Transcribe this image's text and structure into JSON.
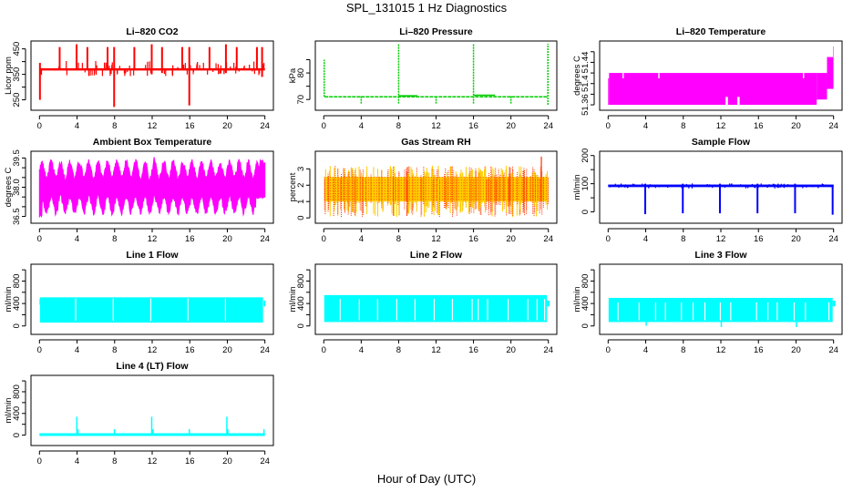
{
  "figure": {
    "title": "SPL_131015  1 Hz Diagnostics",
    "xlabel": "Hour of Day (UTC)"
  },
  "chart_data": [
    {
      "type": "line",
      "id": "co2",
      "title": "Li–820 CO2",
      "ylabel": "Licor ppm",
      "color": "#ff0000",
      "xlim": [
        0,
        24
      ],
      "x_ticks": [
        0,
        4,
        8,
        12,
        16,
        20,
        24
      ],
      "ylim": [
        220,
        470
      ],
      "y_ticks": [
        250,
        300,
        350,
        400,
        450
      ],
      "y_tick_labels": [
        "250",
        "",
        "350",
        "",
        "450"
      ],
      "baseline": 370,
      "band": [
        365,
        374
      ],
      "spikes": [
        {
          "x": 0.05,
          "low": 250,
          "high": 395
        },
        {
          "x": 2.15,
          "low": 368,
          "high": 457
        },
        {
          "x": 3.95,
          "low": 366,
          "high": 468
        },
        {
          "x": 5.1,
          "low": 366,
          "high": 457
        },
        {
          "x": 7.25,
          "low": 366,
          "high": 457
        },
        {
          "x": 7.95,
          "low": 222,
          "high": 457
        },
        {
          "x": 10.1,
          "low": 366,
          "high": 457
        },
        {
          "x": 11.95,
          "low": 350,
          "high": 468
        },
        {
          "x": 13.05,
          "low": 355,
          "high": 457
        },
        {
          "x": 15.2,
          "low": 366,
          "high": 457
        },
        {
          "x": 15.95,
          "low": 228,
          "high": 457
        },
        {
          "x": 18.1,
          "low": 366,
          "high": 457
        },
        {
          "x": 19.85,
          "low": 355,
          "high": 468
        },
        {
          "x": 21.0,
          "low": 366,
          "high": 457
        },
        {
          "x": 23.15,
          "low": 366,
          "high": 457
        },
        {
          "x": 23.7,
          "low": 340,
          "high": 457
        }
      ]
    },
    {
      "type": "line",
      "id": "pressure",
      "title": "Li–820 Pressure",
      "ylabel": "kPa",
      "color": "#00cc00",
      "xlim": [
        0,
        24
      ],
      "x_ticks": [
        0,
        4,
        8,
        12,
        16,
        20,
        24
      ],
      "ylim": [
        67,
        91
      ],
      "y_ticks": [
        70,
        75,
        80,
        85
      ],
      "y_tick_labels": [
        "70",
        "",
        "80",
        ""
      ],
      "baseline": 71,
      "spikes": [
        {
          "x": 0.05,
          "low": 71,
          "high": 85
        },
        {
          "x": 4.0,
          "low": 68.5,
          "high": 71.5
        },
        {
          "x": 8.0,
          "low": 68.5,
          "high": 91
        },
        {
          "x": 12.0,
          "low": 68.5,
          "high": 71.5
        },
        {
          "x": 16.0,
          "low": 68.5,
          "high": 91
        },
        {
          "x": 20.0,
          "low": 68.5,
          "high": 71.5
        },
        {
          "x": 23.95,
          "low": 68,
          "high": 91
        }
      ]
    },
    {
      "type": "area",
      "id": "licor_temp",
      "title": "Li–820 Temperature",
      "ylabel": "degrees C",
      "color": "#ff00ff",
      "xlim": [
        0,
        24
      ],
      "x_ticks": [
        0,
        4,
        8,
        12,
        16,
        20,
        24
      ],
      "ylim": [
        51.355,
        51.475
      ],
      "y_ticks": [
        51.36,
        51.38,
        51.4,
        51.42,
        51.44,
        51.46
      ],
      "y_tick_labels": [
        "51.36",
        "",
        "51.4",
        "",
        "51.44",
        ""
      ],
      "segments": [
        {
          "x0": 0.0,
          "x1": 0.1,
          "low": 51.36,
          "high": 51.41
        },
        {
          "x0": 0.1,
          "x1": 22.2,
          "low": 51.36,
          "high": 51.42
        },
        {
          "x0": 22.2,
          "x1": 23.3,
          "low": 51.37,
          "high": 51.42
        },
        {
          "x0": 23.3,
          "x1": 23.95,
          "low": 51.39,
          "high": 51.45
        },
        {
          "x0": 23.95,
          "x1": 24.0,
          "low": 51.39,
          "high": 51.47
        }
      ],
      "gaps": [
        {
          "x": 1.6,
          "low": 51.41,
          "high": 51.42
        },
        {
          "x": 5.4,
          "low": 51.41,
          "high": 51.42
        },
        {
          "x": 20.8,
          "low": 51.41,
          "high": 51.42
        }
      ],
      "notches": [
        {
          "x0": 12.5,
          "x1": 12.75,
          "low": 51.36,
          "high": 51.375
        },
        {
          "x0": 13.75,
          "x1": 14.0,
          "low": 51.36,
          "high": 51.375
        }
      ]
    },
    {
      "type": "area",
      "id": "ambient_temp",
      "title": "Ambient Box Temperature",
      "ylabel": "degrees C",
      "color": "#ff00ff",
      "xlim": [
        0,
        24
      ],
      "x_ticks": [
        0,
        4,
        8,
        12,
        16,
        20,
        24
      ],
      "ylim": [
        36.3,
        39.7
      ],
      "y_ticks": [
        36.5,
        37.0,
        37.5,
        38.0,
        38.5,
        39.0,
        39.5
      ],
      "y_tick_labels": [
        "36.5",
        "",
        "",
        "38.0",
        "",
        "",
        "39.5"
      ],
      "center": 38.0,
      "cycle_hours": 1.0,
      "amplitude": 0.9,
      "noise": 0.35,
      "spike": {
        "x": 12.2,
        "high": 39.55
      },
      "late_rise": {
        "x0": 23.0,
        "x1": 24.0,
        "high": 39.4,
        "low": 37.6
      }
    },
    {
      "type": "area",
      "id": "gas_rh",
      "title": "Gas Stream RH",
      "ylabel": "percent",
      "color": "#ffcc00",
      "dot_color": "#ff3300",
      "xlim": [
        0,
        24
      ],
      "x_ticks": [
        0,
        4,
        8,
        12,
        16,
        20,
        24
      ],
      "ylim": [
        -0.15,
        3.9
      ],
      "y_ticks": [
        0,
        1,
        2,
        3
      ],
      "y_tick_labels": [
        "0",
        "1",
        "2",
        "3"
      ],
      "band": [
        1.0,
        2.5
      ],
      "range": [
        0.05,
        3.2
      ],
      "max_spike": {
        "x": 23.25,
        "high": 3.75
      }
    },
    {
      "type": "line",
      "id": "sample_flow",
      "title": "Sample Flow",
      "ylabel": "ml/min",
      "color": "#0000ff",
      "xlim": [
        0,
        24
      ],
      "x_ticks": [
        0,
        4,
        8,
        12,
        16,
        20,
        24
      ],
      "ylim": [
        -30,
        205
      ],
      "y_ticks": [
        0,
        50,
        100,
        150,
        200
      ],
      "y_tick_labels": [
        "0",
        "",
        "100",
        "",
        "200"
      ],
      "baseline": 92,
      "band": [
        88,
        97
      ],
      "spikes": [
        {
          "x": 3.95,
          "low": -8,
          "high": 100
        },
        {
          "x": 7.95,
          "low": -5,
          "high": 100
        },
        {
          "x": 11.9,
          "low": -5,
          "high": 100
        },
        {
          "x": 15.9,
          "low": -5,
          "high": 100
        },
        {
          "x": 19.9,
          "low": -5,
          "high": 100
        },
        {
          "x": 23.9,
          "low": -10,
          "high": 95
        }
      ]
    },
    {
      "type": "area",
      "id": "line1_flow",
      "title": "Line 1 Flow",
      "ylabel": "ml/min",
      "color": "#00ffff",
      "xlim": [
        0,
        24
      ],
      "x_ticks": [
        0,
        4,
        8,
        12,
        16,
        20,
        24
      ],
      "ylim": [
        -100,
        1050
      ],
      "y_ticks": [
        0,
        200,
        400,
        600,
        800,
        1000
      ],
      "y_tick_labels": [
        "0",
        "",
        "400",
        "",
        "800",
        ""
      ],
      "band": [
        60,
        510
      ],
      "range": [
        0.05,
        23.8
      ],
      "gaps": [
        3.85,
        7.85,
        11.85,
        15.8,
        19.8
      ],
      "tail": {
        "x": 24.0,
        "low": 350,
        "high": 450
      }
    },
    {
      "type": "area",
      "id": "line2_flow",
      "title": "Line 2 Flow",
      "ylabel": "ml/min",
      "color": "#00ffff",
      "xlim": [
        0,
        24
      ],
      "x_ticks": [
        0,
        4,
        8,
        12,
        16,
        20,
        24
      ],
      "ylim": [
        -100,
        1050
      ],
      "y_ticks": [
        0,
        200,
        400,
        600,
        800,
        1000
      ],
      "y_tick_labels": [
        "0",
        "",
        "400",
        "",
        "800",
        ""
      ],
      "band": [
        70,
        550
      ],
      "range": [
        0.05,
        23.85
      ],
      "gaps": [
        1.75,
        3.8,
        5.75,
        7.8,
        9.75,
        11.8,
        13.75,
        15.85,
        16.5,
        17.5,
        19.7,
        21.8,
        22.8,
        23.6
      ]
    },
    {
      "type": "area",
      "id": "line3_flow",
      "title": "Line 3 Flow",
      "ylabel": "ml/min",
      "color": "#00ffff",
      "xlim": [
        0,
        24
      ],
      "x_ticks": [
        0,
        4,
        8,
        12,
        16,
        20,
        24
      ],
      "ylim": [
        -100,
        1050
      ],
      "y_ticks": [
        0,
        200,
        400,
        600,
        800,
        1000
      ],
      "y_tick_labels": [
        "0",
        "",
        "400",
        "",
        "800",
        ""
      ],
      "band": [
        70,
        500
      ],
      "range": [
        0.05,
        23.9
      ],
      "gaps": [
        1.05,
        3.3,
        5.05,
        6.1,
        7.8,
        9.05,
        10.3,
        11.95,
        13.05,
        15.8,
        17.0,
        18.0,
        19.8,
        21.0,
        23.5
      ],
      "dips": [
        {
          "x": 4.05,
          "low": 5
        },
        {
          "x": 12.05,
          "low": -20
        },
        {
          "x": 20.05,
          "low": -20
        }
      ]
    },
    {
      "type": "line",
      "id": "line4_flow",
      "title": "Line 4 (LT) Flow",
      "ylabel": "ml/min",
      "color": "#00ffff",
      "xlim": [
        0,
        24
      ],
      "x_ticks": [
        0,
        4,
        8,
        12,
        16,
        20,
        24
      ],
      "ylim": [
        -140,
        1050
      ],
      "y_ticks": [
        0,
        200,
        400,
        600,
        800,
        1000
      ],
      "y_tick_labels": [
        "0",
        "",
        "400",
        "",
        "800",
        ""
      ],
      "baseline": 10,
      "spikes": [
        {
          "x": 3.98,
          "low": 10,
          "high": 340
        },
        {
          "x": 4.1,
          "low": 10,
          "high": 110
        },
        {
          "x": 7.98,
          "low": 10,
          "high": 110
        },
        {
          "x": 11.95,
          "low": 10,
          "high": 340
        },
        {
          "x": 12.08,
          "low": 10,
          "high": 110
        },
        {
          "x": 15.95,
          "low": 10,
          "high": 110
        },
        {
          "x": 19.95,
          "low": 10,
          "high": 340
        },
        {
          "x": 20.05,
          "low": 10,
          "high": 110
        },
        {
          "x": 23.9,
          "low": 10,
          "high": 110
        }
      ]
    }
  ]
}
